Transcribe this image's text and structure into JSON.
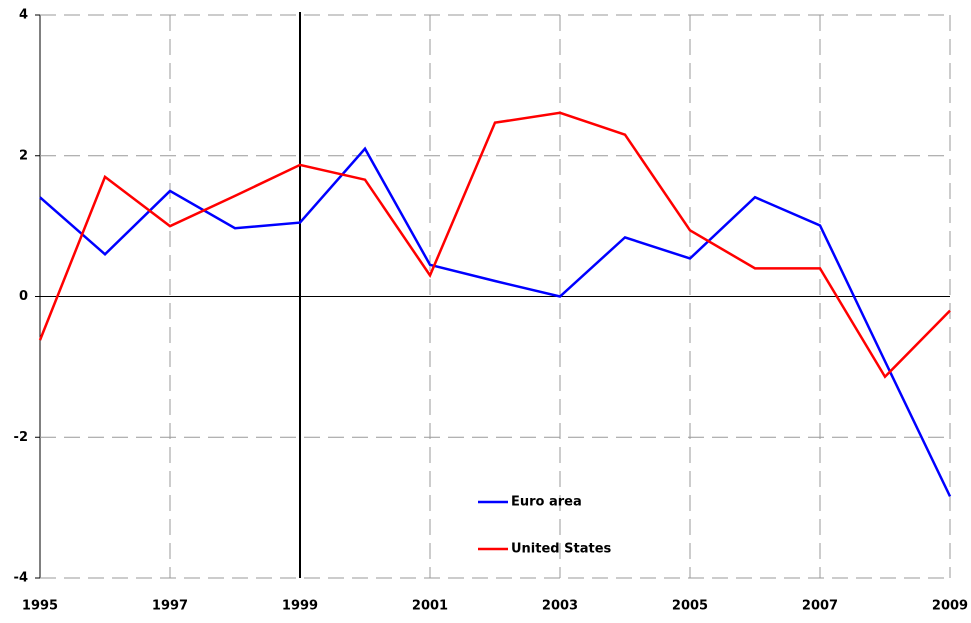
{
  "chart_data": {
    "type": "line",
    "x": [
      1995,
      1996,
      1997,
      1998,
      1999,
      2000,
      2001,
      2002,
      2003,
      2004,
      2005,
      2006,
      2007,
      2008,
      2009
    ],
    "series": [
      {
        "name": "Euro area",
        "color": "#0000ff",
        "values": [
          1.41,
          0.6,
          1.5,
          0.97,
          1.05,
          2.1,
          0.45,
          0.22,
          0,
          0.84,
          0.54,
          1.41,
          1.01,
          -0.92,
          -2.84
        ]
      },
      {
        "name": "United States",
        "color": "#ff0000",
        "values": [
          -0.62,
          1.7,
          1.0,
          1.43,
          1.87,
          1.66,
          0.3,
          2.47,
          2.61,
          2.3,
          0.94,
          0.4,
          0.4,
          -1.14,
          -0.2
        ]
      }
    ],
    "xlim": [
      1995,
      2009
    ],
    "xticks": [
      1995,
      1997,
      1999,
      2001,
      2003,
      2005,
      2007,
      2009
    ],
    "ylim": [
      -4,
      4
    ],
    "yticks": [
      -4,
      -2,
      0,
      2,
      4
    ],
    "grid": true,
    "vertical_line_x": 1999,
    "legend_position": "lower-center"
  }
}
